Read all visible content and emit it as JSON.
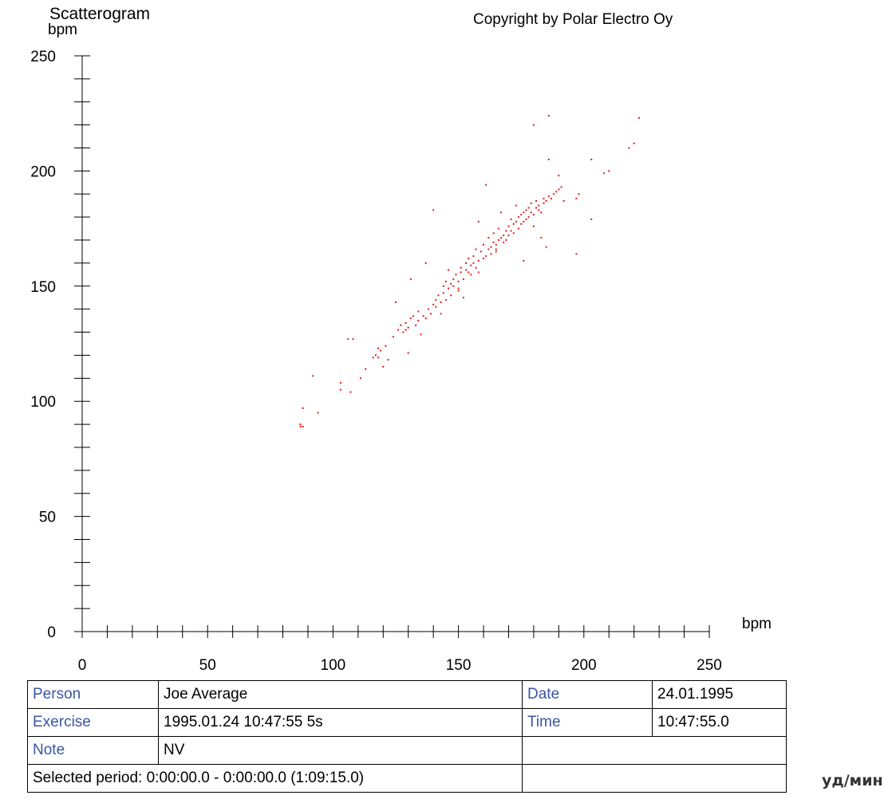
{
  "header": {
    "title": "Scatterogram",
    "copyright": "Copyright by Polar Electro Oy"
  },
  "chart_data": {
    "type": "scatter",
    "ylabel": "bpm",
    "xlabel": "bpm",
    "xlim": [
      0,
      250
    ],
    "ylim": [
      0,
      250
    ],
    "x_ticks": [
      "0",
      "50",
      "100",
      "150",
      "200",
      "250"
    ],
    "y_ticks": [
      "0",
      "50",
      "100",
      "150",
      "200",
      "250"
    ],
    "marker_color": "#e31b1b",
    "points": [
      [
        87,
        90
      ],
      [
        87,
        89
      ],
      [
        88,
        89
      ],
      [
        88,
        97
      ],
      [
        92,
        111
      ],
      [
        94,
        95
      ],
      [
        103,
        108
      ],
      [
        103,
        105
      ],
      [
        106,
        127
      ],
      [
        107,
        104
      ],
      [
        108,
        127
      ],
      [
        111,
        110
      ],
      [
        113,
        114
      ],
      [
        116,
        119
      ],
      [
        117,
        120
      ],
      [
        118,
        119
      ],
      [
        118,
        123
      ],
      [
        119,
        122
      ],
      [
        120,
        115
      ],
      [
        121,
        124
      ],
      [
        122,
        118
      ],
      [
        124,
        128
      ],
      [
        125,
        143
      ],
      [
        126,
        131
      ],
      [
        127,
        133
      ],
      [
        128,
        130
      ],
      [
        129,
        131
      ],
      [
        129,
        134
      ],
      [
        130,
        121
      ],
      [
        130,
        132
      ],
      [
        131,
        153
      ],
      [
        131,
        136
      ],
      [
        132,
        137
      ],
      [
        133,
        133
      ],
      [
        134,
        135
      ],
      [
        134,
        139
      ],
      [
        135,
        129
      ],
      [
        136,
        137
      ],
      [
        137,
        160
      ],
      [
        137,
        136
      ],
      [
        138,
        140
      ],
      [
        139,
        138
      ],
      [
        140,
        142
      ],
      [
        140,
        183
      ],
      [
        141,
        144
      ],
      [
        141,
        141
      ],
      [
        142,
        146
      ],
      [
        143,
        143
      ],
      [
        143,
        138
      ],
      [
        144,
        147
      ],
      [
        144,
        150
      ],
      [
        145,
        144
      ],
      [
        145,
        152
      ],
      [
        146,
        149
      ],
      [
        146,
        157
      ],
      [
        147,
        151
      ],
      [
        147,
        146
      ],
      [
        148,
        153
      ],
      [
        148,
        150
      ],
      [
        149,
        155
      ],
      [
        150,
        152
      ],
      [
        150,
        148
      ],
      [
        150,
        149
      ],
      [
        151,
        156
      ],
      [
        151,
        158
      ],
      [
        152,
        153
      ],
      [
        152,
        145
      ],
      [
        153,
        157
      ],
      [
        153,
        160
      ],
      [
        154,
        156
      ],
      [
        154,
        162
      ],
      [
        155,
        159
      ],
      [
        155,
        155
      ],
      [
        156,
        160
      ],
      [
        156,
        163
      ],
      [
        157,
        158
      ],
      [
        157,
        166
      ],
      [
        158,
        161
      ],
      [
        158,
        178
      ],
      [
        158,
        156
      ],
      [
        159,
        165
      ],
      [
        160,
        162
      ],
      [
        160,
        168
      ],
      [
        161,
        194
      ],
      [
        161,
        163
      ],
      [
        162,
        166
      ],
      [
        162,
        171
      ],
      [
        163,
        167
      ],
      [
        163,
        164
      ],
      [
        164,
        169
      ],
      [
        164,
        173
      ],
      [
        165,
        168
      ],
      [
        165,
        166
      ],
      [
        165,
        165
      ],
      [
        166,
        170
      ],
      [
        166,
        175
      ],
      [
        167,
        171
      ],
      [
        167,
        182
      ],
      [
        168,
        169
      ],
      [
        168,
        172
      ],
      [
        169,
        174
      ],
      [
        169,
        170
      ],
      [
        170,
        176
      ],
      [
        170,
        172
      ],
      [
        171,
        174
      ],
      [
        171,
        179
      ],
      [
        172,
        177
      ],
      [
        172,
        173
      ],
      [
        173,
        185
      ],
      [
        173,
        178
      ],
      [
        174,
        175
      ],
      [
        174,
        180
      ],
      [
        175,
        181
      ],
      [
        175,
        177
      ],
      [
        176,
        182
      ],
      [
        176,
        178
      ],
      [
        176,
        161
      ],
      [
        177,
        183
      ],
      [
        177,
        179
      ],
      [
        178,
        184
      ],
      [
        178,
        180
      ],
      [
        179,
        186
      ],
      [
        179,
        182
      ],
      [
        180,
        220
      ],
      [
        180,
        181
      ],
      [
        180,
        176
      ],
      [
        181,
        184
      ],
      [
        181,
        187
      ],
      [
        182,
        183
      ],
      [
        182,
        185
      ],
      [
        183,
        182
      ],
      [
        183,
        171
      ],
      [
        184,
        186
      ],
      [
        184,
        188
      ],
      [
        185,
        167
      ],
      [
        185,
        187
      ],
      [
        186,
        224
      ],
      [
        186,
        205
      ],
      [
        186,
        189
      ],
      [
        187,
        188
      ],
      [
        188,
        190
      ],
      [
        189,
        191
      ],
      [
        190,
        198
      ],
      [
        190,
        192
      ],
      [
        191,
        193
      ],
      [
        192,
        187
      ],
      [
        197,
        188
      ],
      [
        197,
        164
      ],
      [
        198,
        190
      ],
      [
        203,
        205
      ],
      [
        203,
        179
      ],
      [
        208,
        199
      ],
      [
        210,
        200
      ],
      [
        218,
        210
      ],
      [
        220,
        212
      ],
      [
        222,
        223
      ]
    ]
  },
  "info_table": {
    "person_label": "Person",
    "person_value": "Joe Average",
    "date_label": "Date",
    "date_value": "24.01.1995",
    "exercise_label": "Exercise",
    "exercise_value": "1995.01.24 10:47:55 5s",
    "time_label": "Time",
    "time_value": "10:47:55.0",
    "note_label": "Note",
    "note_value": "NV",
    "selected_period": "Selected period: 0:00:00.0 - 0:00:00.0 (1:09:15.0)"
  },
  "footer": {
    "unit_label": "уд/мин"
  }
}
